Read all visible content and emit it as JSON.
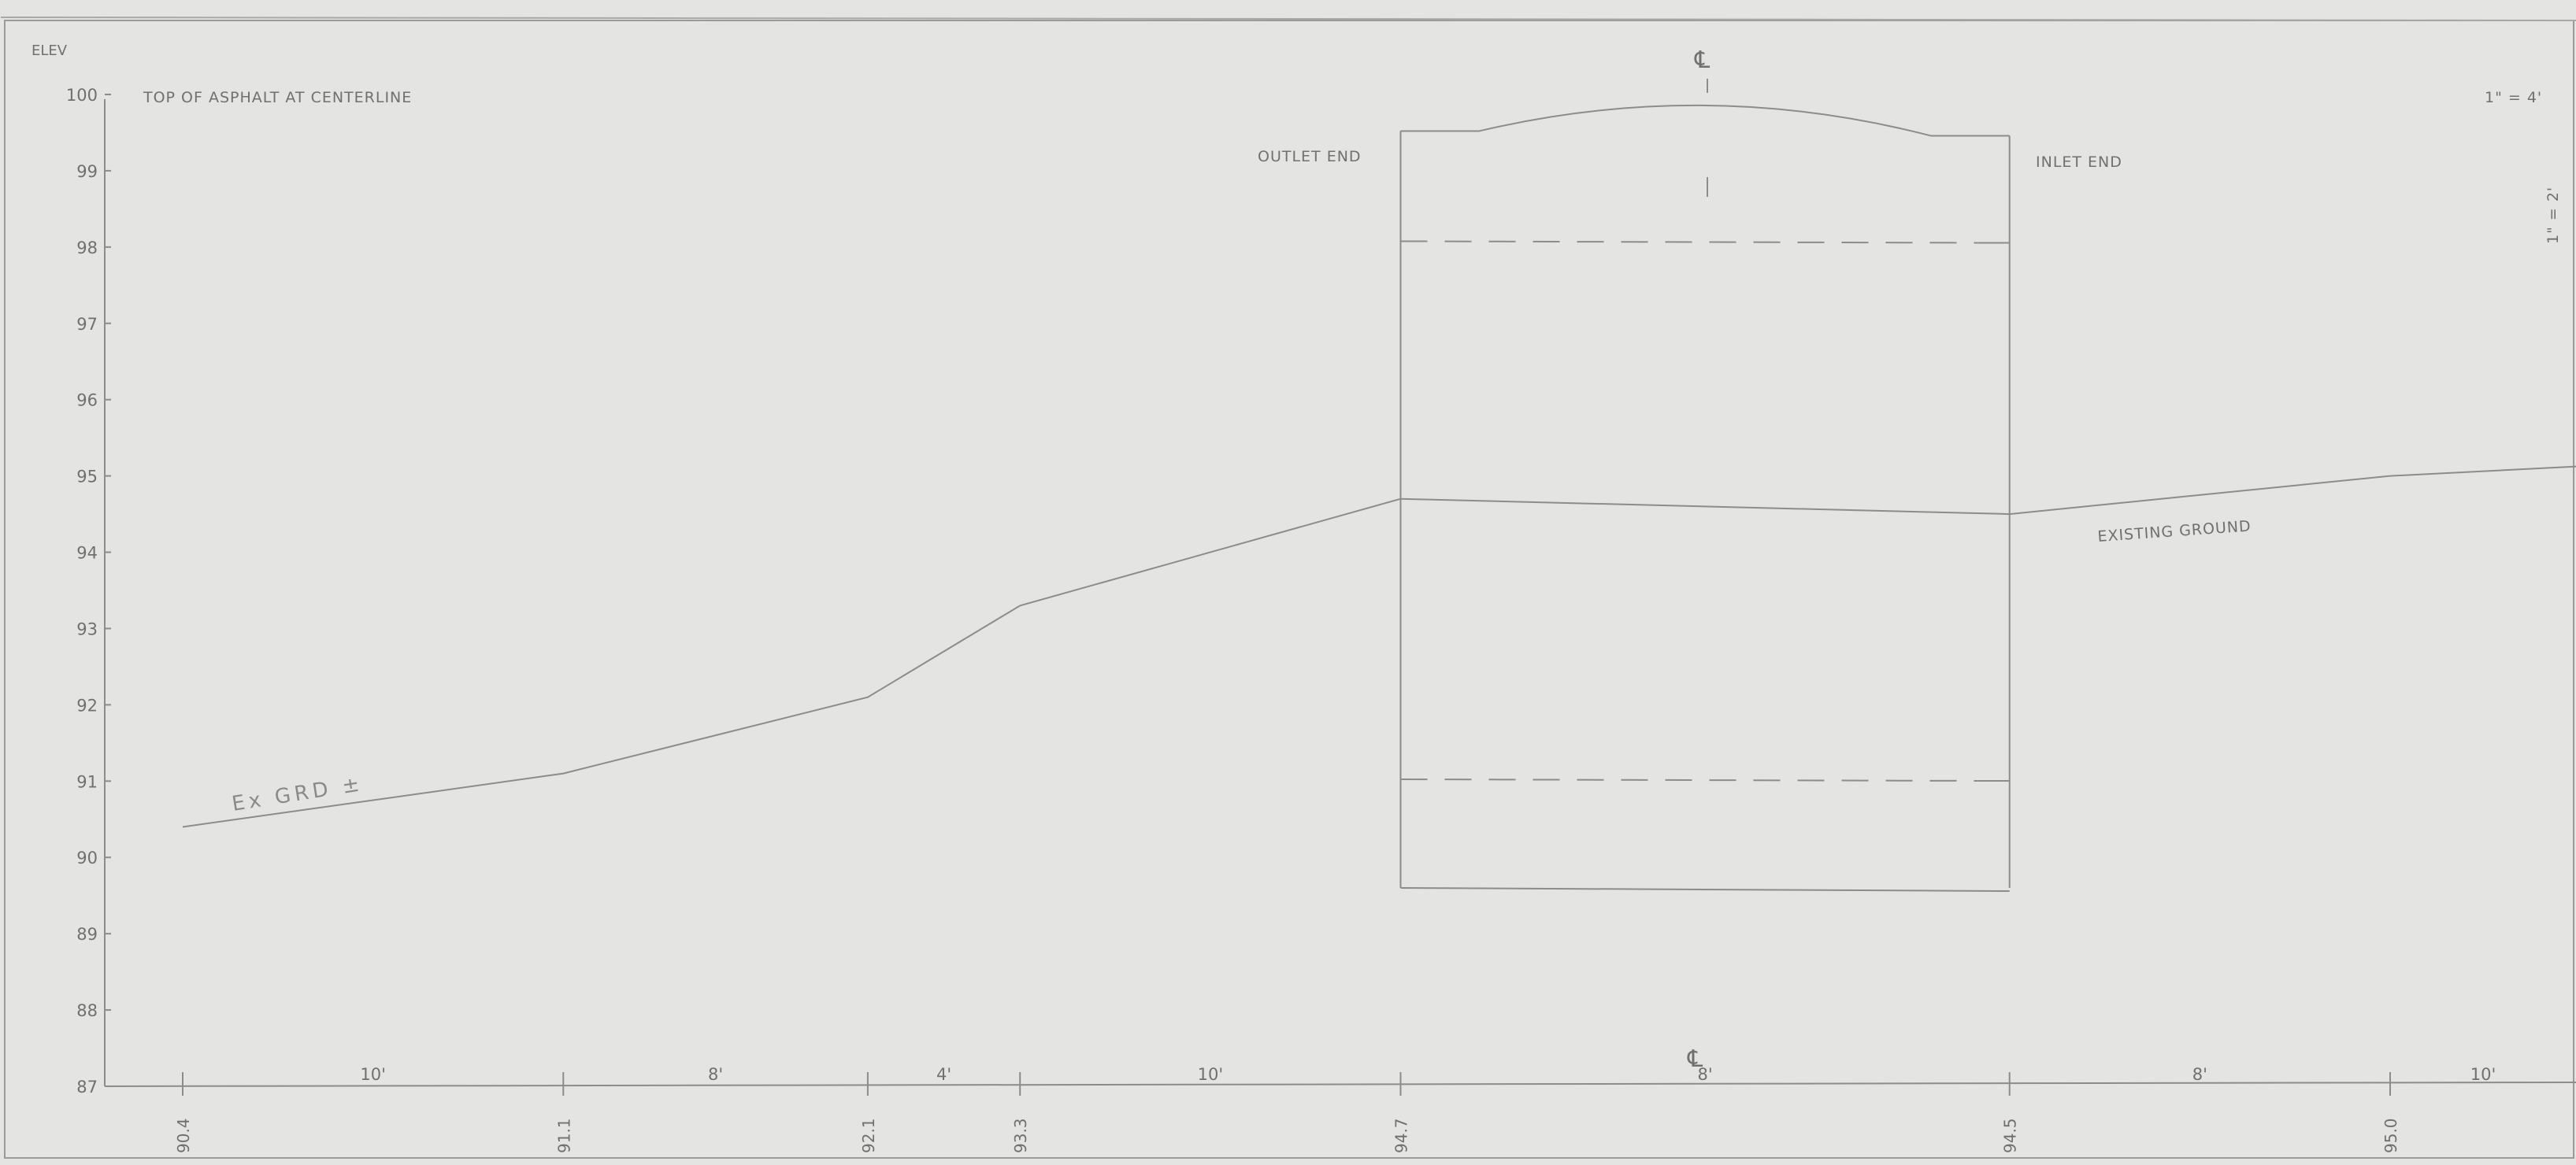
{
  "header": {
    "elev_label": "ELEV",
    "scale_horizontal": "1\" = 4'",
    "scale_vertical": "1\" = 2'"
  },
  "title": "TOP OF ASPHALT AT CENTERLINE",
  "labels": {
    "outlet_end": "OUTLET END",
    "inlet_end": "INLET END",
    "existing_ground": "EXISTING   GROUND",
    "handwritten_note": "Ex GRD ±",
    "centerline_symbol": "℄"
  },
  "elevation_ticks": [
    "100",
    "99",
    "98",
    "97",
    "96",
    "95",
    "94",
    "93",
    "92",
    "91",
    "90",
    "89",
    "88",
    "87"
  ],
  "stations": [
    "90.4",
    "91.1",
    "92.1",
    "93.3",
    "94.7",
    "94.5",
    "95.0"
  ],
  "spacings": [
    "10'",
    "8'",
    "4'",
    "10'",
    "8'",
    "8'",
    "10'"
  ],
  "chart_data": {
    "type": "line",
    "title": "TOP OF ASPHALT AT CENTERLINE",
    "xlabel": "",
    "ylabel": "ELEV",
    "ylim": [
      87,
      100
    ],
    "grid": false,
    "series": [
      {
        "name": "EXISTING GROUND",
        "x": [
          0,
          10,
          18,
          22,
          32,
          48,
          58
        ],
        "y": [
          90.4,
          91.1,
          92.1,
          93.3,
          94.7,
          94.5,
          95.0
        ]
      }
    ],
    "culvert": {
      "x": [
        32,
        48
      ],
      "top": 99.5,
      "bottom": 89.6
    }
  }
}
